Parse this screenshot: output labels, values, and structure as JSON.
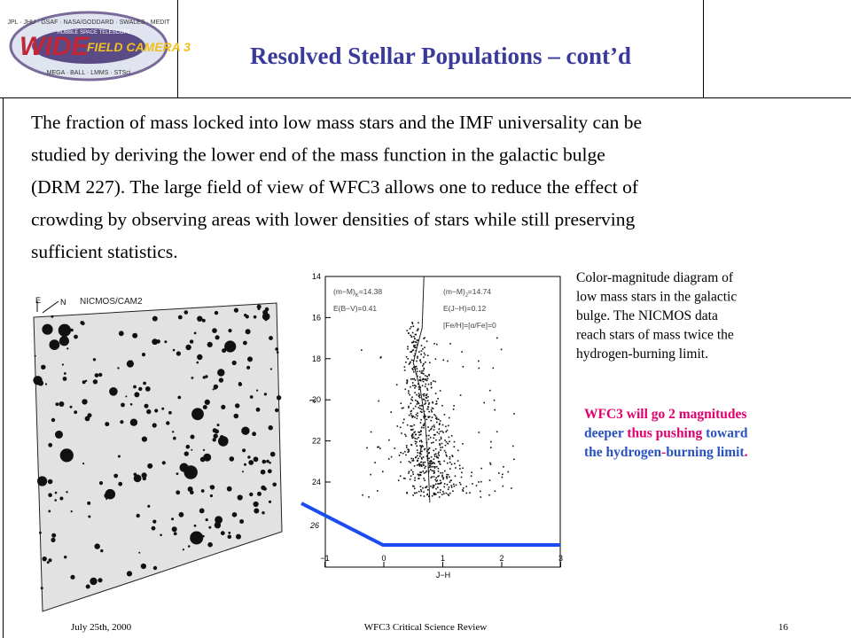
{
  "header": {
    "logo": {
      "top": "JPL · JHU · GSAF · NASA/GODDARD · SWALES · MEDIT",
      "main_a": "WIDE",
      "main_b": "FIELD CAMERA 3",
      "sub": "HUBBLE SPACE TELESCOPE",
      "bottom": "MEGA · BALL · LMMS · STSci"
    },
    "title": "Resolved Stellar Populations – cont’d"
  },
  "body": {
    "lines": [
      "The fraction of mass locked into low mass stars and the IMF universality can be",
      "studied by deriving the lower end of the mass function in the galactic bulge",
      "(DRM 227). The large field of view of WFC3 allows one to reduce the effect of",
      "crowding by observing areas with lower densities of stars while still preserving",
      "sufficient statistics."
    ]
  },
  "image": {
    "compass_e": "E",
    "compass_n": "N",
    "label": "NICMOS/CAM2"
  },
  "cmd": {
    "yticks": [
      "14",
      "16",
      "18",
      "20",
      "22",
      "24"
    ],
    "ytick_extra": "26",
    "xticks": [
      "−1",
      "0",
      "1",
      "2",
      "3"
    ],
    "ylabel": "J",
    "xlabel": "J−H",
    "notes_left": [
      {
        "main": "(m−M)",
        "sub": "K",
        "rest": "=14.38"
      },
      {
        "main": "E(B−V)=0.41",
        "sub": "",
        "rest": ""
      }
    ],
    "notes_right": [
      {
        "main": "(m−M)",
        "sub": "J",
        "rest": "=14.74"
      },
      {
        "main": "E(J−H)=0.12",
        "sub": "",
        "rest": ""
      },
      {
        "main": "[Fe/H]=[α/Fe]=0",
        "sub": "",
        "rest": ""
      }
    ]
  },
  "caption": {
    "lines": [
      "Color-magnitude diagram of",
      "low mass stars in the galactic",
      "bulge. The NICMOS data",
      "reach stars of mass twice the",
      "hydrogen-burning limit."
    ]
  },
  "highlight": {
    "lines": [
      [
        {
          "text": "WFC3 will go 2 magnitudes",
          "color": "#e0006e"
        }
      ],
      [
        {
          "text": "deeper",
          "color": "#2a52be"
        },
        {
          "text": " thus pushing ",
          "color": "#e0006e"
        },
        {
          "text": "toward",
          "color": "#2a52be"
        }
      ],
      [
        {
          "text": "the hydrogen",
          "color": "#2a52be"
        },
        {
          "text": "-",
          "color": "#e0006e"
        },
        {
          "text": "burning limit",
          "color": "#2a52be"
        },
        {
          "text": ".",
          "color": "#e0006e"
        }
      ]
    ]
  },
  "footer": {
    "date": "July 25th, 2000",
    "event": "WFC3 Critical Science Review",
    "page": "16"
  }
}
